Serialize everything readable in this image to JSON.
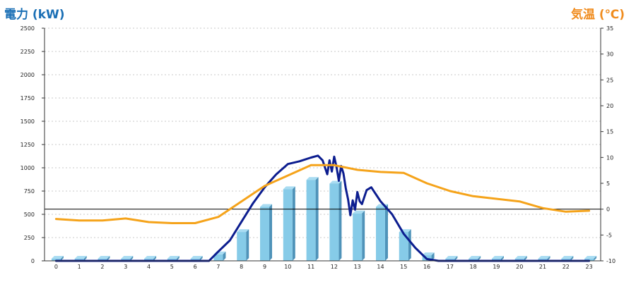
{
  "chart_data": {
    "type": "bar",
    "left_axis_title": "電力 (kW)",
    "right_axis_title": "気温 (℃)",
    "categories": [
      "0",
      "1",
      "2",
      "3",
      "4",
      "5",
      "6",
      "7",
      "8",
      "9",
      "10",
      "11",
      "12",
      "13",
      "14",
      "15",
      "16",
      "17",
      "18",
      "19",
      "20",
      "21",
      "22",
      "23"
    ],
    "y_left": {
      "min": 0,
      "max": 2500,
      "ticks": [
        "0",
        "250",
        "500",
        "750",
        "1000",
        "1250",
        "1500",
        "1750",
        "2000",
        "2250",
        "2500"
      ]
    },
    "y_right": {
      "min": -10,
      "max": 35,
      "ticks": [
        "-10",
        "-5",
        "0",
        "5",
        "10",
        "15",
        "20",
        "25",
        "30",
        "35"
      ]
    },
    "grid": true,
    "series": [
      {
        "kind": "bar",
        "axis": "left",
        "values": [
          0,
          0,
          0,
          0,
          0,
          0,
          0,
          70,
          310,
          580,
          770,
          870,
          830,
          510,
          580,
          310,
          60,
          0,
          0,
          0,
          0,
          0,
          0,
          0
        ]
      },
      {
        "kind": "line",
        "axis": "left",
        "color": "#0c1d8f",
        "x": [
          0,
          1,
          2,
          3,
          4,
          5,
          6,
          6.6,
          7,
          7.5,
          8,
          8.5,
          9,
          9.5,
          10,
          10.5,
          11,
          11.3,
          11.5,
          11.7,
          11.8,
          11.9,
          12,
          12.1,
          12.2,
          12.3,
          12.4,
          12.5,
          12.6,
          12.7,
          12.8,
          12.9,
          13,
          13.1,
          13.2,
          13.4,
          13.6,
          14,
          14.5,
          15,
          15.5,
          16,
          16.5,
          17,
          18,
          19,
          20,
          21,
          22,
          23
        ],
        "y": [
          0,
          0,
          0,
          0,
          0,
          0,
          0,
          0,
          100,
          220,
          420,
          620,
          790,
          930,
          1040,
          1070,
          1110,
          1130,
          1080,
          930,
          1080,
          960,
          1120,
          1010,
          860,
          1020,
          940,
          780,
          660,
          490,
          650,
          550,
          740,
          640,
          610,
          760,
          790,
          640,
          500,
          290,
          140,
          20,
          0,
          0,
          0,
          0,
          0,
          0,
          0,
          0
        ]
      },
      {
        "kind": "line",
        "axis": "right",
        "color": "#f5a31a",
        "values": [
          -1.9,
          -2.2,
          -2.2,
          -1.8,
          -2.5,
          -2.7,
          -2.7,
          -1.5,
          1.5,
          4.5,
          6.5,
          8.5,
          8.5,
          7.6,
          7.2,
          7.0,
          5.0,
          3.5,
          2.5,
          2.0,
          1.5,
          0.2,
          -0.5,
          -0.3
        ]
      }
    ],
    "reference_line": {
      "axis": "right",
      "value": 0
    }
  }
}
